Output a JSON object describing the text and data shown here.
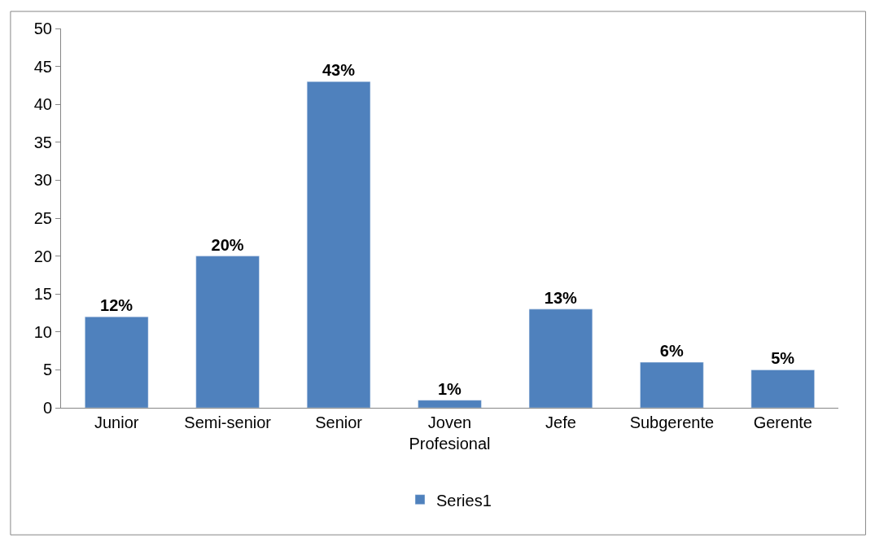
{
  "chart_data": {
    "type": "bar",
    "categories": [
      "Junior",
      "Semi-senior",
      "Senior",
      "Joven Profesional",
      "Jefe",
      "Subgerente",
      "Gerente"
    ],
    "series": [
      {
        "name": "Series1",
        "color": "#4f81bd",
        "values": [
          12,
          20,
          43,
          1,
          13,
          6,
          5
        ],
        "value_labels": [
          "12%",
          "20%",
          "43%",
          "1%",
          "13%",
          "6%",
          "5%"
        ]
      }
    ],
    "ylim": [
      0,
      50
    ],
    "yticks": [
      0,
      5,
      10,
      15,
      20,
      25,
      30,
      35,
      40,
      45,
      50
    ],
    "grid": false,
    "legend": "bottom"
  }
}
